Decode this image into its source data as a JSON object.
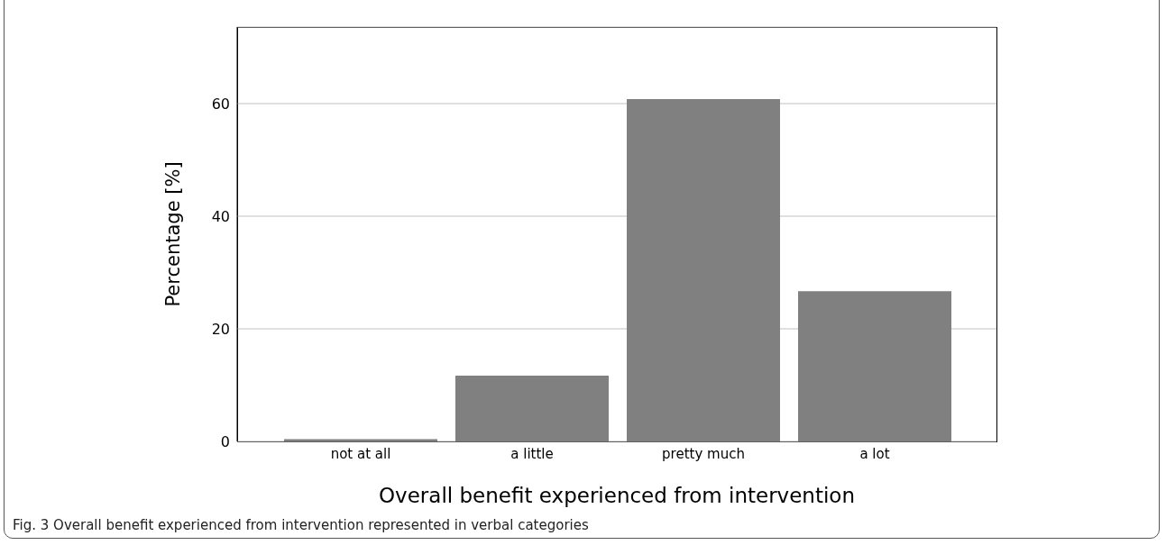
{
  "chart_data": {
    "type": "bar",
    "xlabel": "Overall benefit experienced from intervention",
    "ylabel": "Percentage [%]",
    "categories": [
      "not at all",
      "a little",
      "pretty much",
      "a lot"
    ],
    "values": [
      0.4,
      11.7,
      60.8,
      26.7
    ],
    "color": "#808080",
    "ylim": [
      0,
      73.6
    ],
    "yticks": [
      0,
      20,
      40,
      60
    ],
    "grid": "y",
    "annotations": [
      "Fig. 3 Overall benefit experienced from intervention represented in verbal categories"
    ]
  }
}
